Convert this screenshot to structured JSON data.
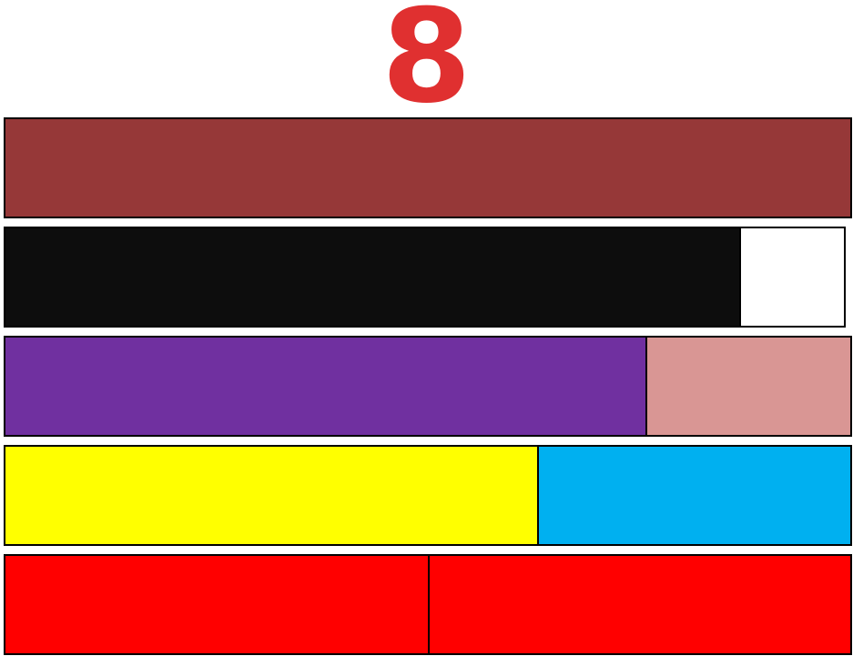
{
  "title": "8",
  "colors": {
    "title": "#e03030"
  },
  "rows": [
    {
      "segments": [
        {
          "color": "#963838",
          "fraction": 1.0
        }
      ]
    },
    {
      "segments": [
        {
          "color": "#0d0d0d",
          "fraction": 0.875
        },
        {
          "color": "#ffffff",
          "fraction": 0.125
        }
      ]
    },
    {
      "segments": [
        {
          "color": "#7030a0",
          "fraction": 0.758
        },
        {
          "color": "#d99694",
          "fraction": 0.242
        }
      ]
    },
    {
      "segments": [
        {
          "color": "#ffff00",
          "fraction": 0.629
        },
        {
          "color": "#00b0f0",
          "fraction": 0.371
        }
      ]
    },
    {
      "segments": [
        {
          "color": "#ff0000",
          "fraction": 0.5
        },
        {
          "color": "#ff0000",
          "fraction": 0.5
        }
      ]
    }
  ]
}
